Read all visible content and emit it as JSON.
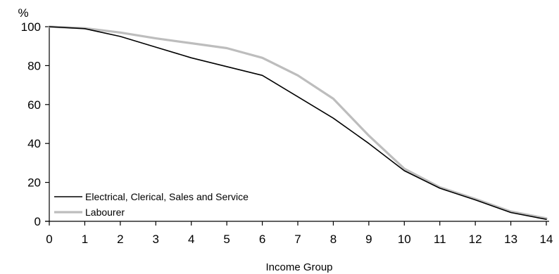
{
  "chart_data": {
    "type": "line",
    "title": "",
    "xlabel": "Income Group",
    "ylabel": "%",
    "x": [
      0,
      1,
      2,
      3,
      4,
      5,
      6,
      7,
      8,
      9,
      10,
      11,
      12,
      13,
      14
    ],
    "xlim": [
      0,
      14
    ],
    "ylim": [
      0,
      100
    ],
    "x_ticks": [
      0,
      1,
      2,
      3,
      4,
      5,
      6,
      7,
      8,
      9,
      10,
      11,
      12,
      13,
      14
    ],
    "y_ticks": [
      0,
      20,
      40,
      60,
      80,
      100
    ],
    "grid": false,
    "legend_position": "bottom-left",
    "series": [
      {
        "name": "Electrical, Clerical, Sales and Service",
        "color": "#000000",
        "values": [
          100,
          99,
          95,
          89.5,
          84,
          79.5,
          75,
          64,
          53,
          40,
          26,
          17,
          11,
          4.5,
          1
        ]
      },
      {
        "name": "Labourer",
        "color": "#bdbdbd",
        "values": [
          100,
          99.2,
          97,
          94,
          91.5,
          89,
          84,
          75,
          63,
          44,
          27,
          17.5,
          11.5,
          5,
          1.5
        ]
      }
    ]
  }
}
